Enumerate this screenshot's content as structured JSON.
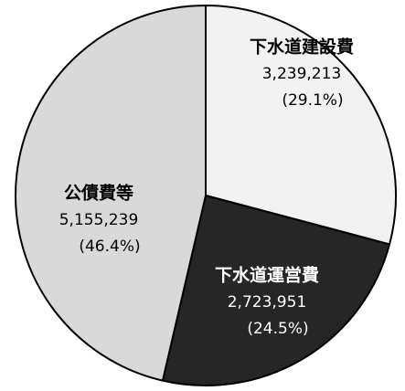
{
  "chart_data": {
    "type": "pie",
    "categories": [
      "下水道建設費",
      "下水道運営費",
      "公債費等"
    ],
    "values": [
      3239213,
      2723951,
      5155239
    ],
    "value_labels": [
      "3,239,213",
      "2,723,951",
      "5,155,239"
    ],
    "percent_labels": [
      "(29.1%)",
      "(24.5%)",
      "(46.4%)"
    ],
    "colors": [
      "#f2f2f2",
      "#262626",
      "#d9d9d9"
    ]
  }
}
